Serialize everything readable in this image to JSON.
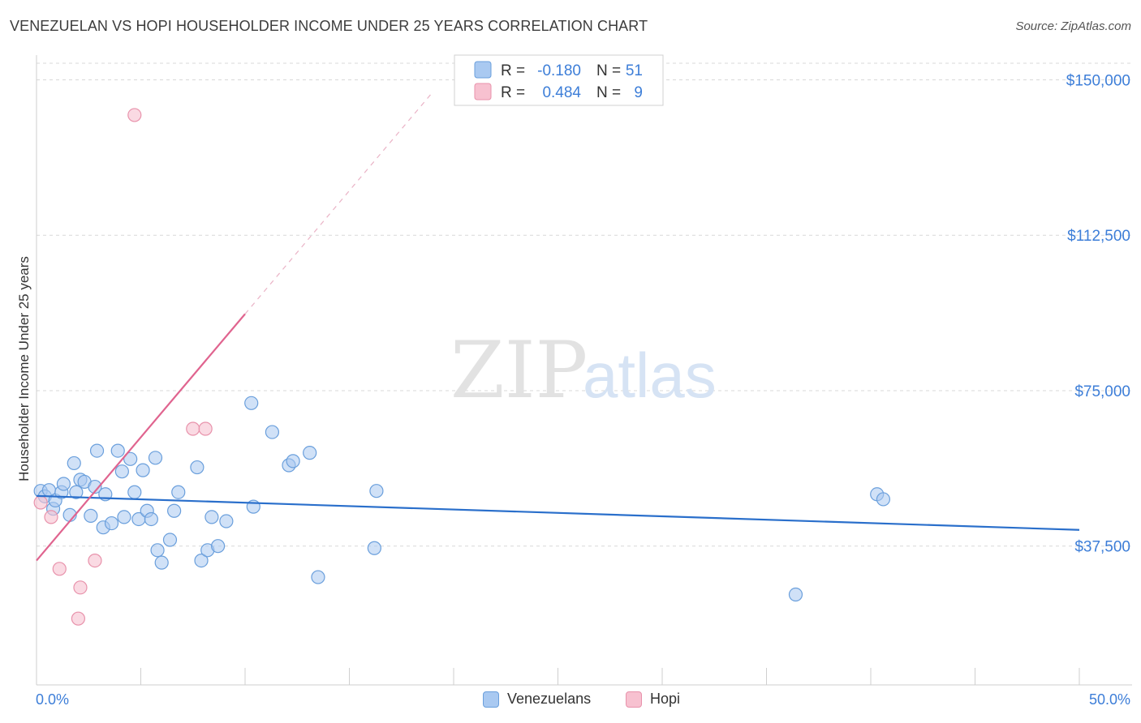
{
  "title": "VENEZUELAN VS HOPI HOUSEHOLDER INCOME UNDER 25 YEARS CORRELATION CHART",
  "source": "Source: ZipAtlas.com",
  "watermark": {
    "zip": "ZIP",
    "atlas": "atlas"
  },
  "colors": {
    "venezuelan_fill": "#a9c9f1",
    "venezuelan_stroke": "#6a9fdc",
    "venezuelan_line": "#2a6fcb",
    "hopi_fill": "#f7c1d0",
    "hopi_stroke": "#e892ab",
    "hopi_line": "#e0648f",
    "axis_text": "#3d7ed8",
    "grid": "#d8d8d8"
  },
  "legend": {
    "rows": [
      {
        "r_label": "R =",
        "r_value": "-0.180",
        "n_label": "N =",
        "n_value": "51"
      },
      {
        "r_label": "R =",
        "r_value": "0.484",
        "n_label": "N =",
        "n_value": "9"
      }
    ]
  },
  "chart_data": {
    "type": "scatter",
    "title": "VENEZUELAN VS HOPI HOUSEHOLDER INCOME UNDER 25 YEARS CORRELATION CHART",
    "xlabel": "",
    "ylabel": "Householder Income Under 25 years",
    "xlim": [
      0,
      50
    ],
    "ylim": [
      4000,
      154000
    ],
    "x_tick_labels": [
      "0.0%",
      "50.0%"
    ],
    "y_ticks": [
      37500,
      75000,
      112500,
      150000
    ],
    "y_tick_labels": [
      "$37,500",
      "$75,000",
      "$112,500",
      "$150,000"
    ],
    "grid": true,
    "legend_position": "top-center",
    "series": [
      {
        "name": "Venezuelans",
        "points": [
          [
            0.2,
            50800
          ],
          [
            0.4,
            49500
          ],
          [
            0.6,
            51000
          ],
          [
            0.8,
            46500
          ],
          [
            0.9,
            48500
          ],
          [
            1.2,
            50500
          ],
          [
            1.3,
            52500
          ],
          [
            1.6,
            45000
          ],
          [
            1.8,
            57500
          ],
          [
            1.9,
            50500
          ],
          [
            2.1,
            53500
          ],
          [
            2.3,
            53000
          ],
          [
            2.6,
            44800
          ],
          [
            2.8,
            51800
          ],
          [
            2.9,
            60500
          ],
          [
            3.2,
            42000
          ],
          [
            3.3,
            50000
          ],
          [
            3.6,
            43000
          ],
          [
            3.9,
            60500
          ],
          [
            4.1,
            55500
          ],
          [
            4.2,
            44500
          ],
          [
            4.5,
            58500
          ],
          [
            4.7,
            50500
          ],
          [
            4.9,
            44000
          ],
          [
            5.1,
            55800
          ],
          [
            5.3,
            46000
          ],
          [
            5.5,
            44000
          ],
          [
            5.7,
            58800
          ],
          [
            5.8,
            36500
          ],
          [
            6.0,
            33500
          ],
          [
            6.4,
            39000
          ],
          [
            6.6,
            46000
          ],
          [
            6.8,
            50500
          ],
          [
            7.7,
            56500
          ],
          [
            7.9,
            34000
          ],
          [
            8.2,
            36500
          ],
          [
            8.4,
            44500
          ],
          [
            8.7,
            37500
          ],
          [
            9.1,
            43500
          ],
          [
            10.3,
            72000
          ],
          [
            10.4,
            47000
          ],
          [
            11.3,
            65000
          ],
          [
            12.1,
            57000
          ],
          [
            12.3,
            58000
          ],
          [
            13.1,
            60000
          ],
          [
            13.5,
            30000
          ],
          [
            16.2,
            37000
          ],
          [
            16.3,
            50800
          ],
          [
            40.3,
            50000
          ],
          [
            40.6,
            48800
          ],
          [
            36.4,
            25800
          ]
        ]
      },
      {
        "name": "Hopi",
        "points": [
          [
            0.2,
            48000
          ],
          [
            0.7,
            44500
          ],
          [
            1.1,
            32000
          ],
          [
            2.1,
            27500
          ],
          [
            2.0,
            20000
          ],
          [
            2.8,
            34000
          ],
          [
            4.7,
            141500
          ],
          [
            7.5,
            65800
          ],
          [
            8.1,
            65800
          ]
        ]
      }
    ],
    "trend_lines": [
      {
        "series": "Venezuelans",
        "x": [
          0,
          50
        ],
        "y": [
          49600,
          41400
        ]
      },
      {
        "series": "Hopi",
        "x": [
          0,
          10.0
        ],
        "y": [
          34000,
          93500
        ],
        "dashed_extension_to_x": 19.0
      }
    ]
  }
}
